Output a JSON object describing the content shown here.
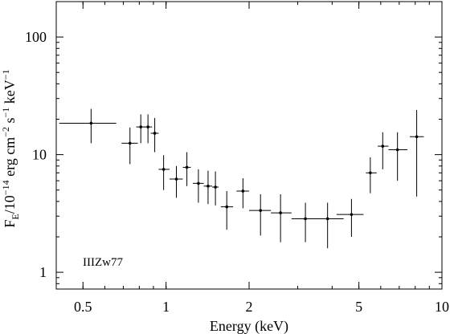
{
  "chart_data": {
    "type": "scatter",
    "title": "",
    "xlabel": "Energy (keV)",
    "ylabel": {
      "pre": "F",
      "sub": "E",
      "mid": "/10",
      "exp1": "−14",
      "unit1": " erg cm",
      "exp2": "−2",
      "unit2": " s",
      "exp3": "−1",
      "unit3": " keV",
      "exp4": "−1"
    },
    "xscale": "log",
    "yscale": "log",
    "xlim": [
      0.4,
      10
    ],
    "ylim": [
      0.72,
      200
    ],
    "xticks": [
      {
        "value": 0.5,
        "label": "0.5"
      },
      {
        "value": 1,
        "label": "1"
      },
      {
        "value": 2,
        "label": "2"
      },
      {
        "value": 5,
        "label": "5"
      },
      {
        "value": 10,
        "label": "10"
      }
    ],
    "yticks": [
      {
        "value": 1,
        "label": "1"
      },
      {
        "value": 10,
        "label": "10"
      },
      {
        "value": 100,
        "label": "100"
      }
    ],
    "annotation": "IIIZw77",
    "series": [
      {
        "color": "#000000",
        "points": [
          {
            "x": 0.535,
            "xlo": 0.41,
            "xhi": 0.66,
            "y": 18.5,
            "ylo": 12.5,
            "yhi": 24.5
          },
          {
            "x": 0.74,
            "xlo": 0.69,
            "xhi": 0.79,
            "y": 12.5,
            "ylo": 8.3,
            "yhi": 17.0
          },
          {
            "x": 0.81,
            "xlo": 0.78,
            "xhi": 0.84,
            "y": 17.2,
            "ylo": 12.5,
            "yhi": 22.0
          },
          {
            "x": 0.86,
            "xlo": 0.83,
            "xhi": 0.89,
            "y": 17.2,
            "ylo": 12.5,
            "yhi": 22.0
          },
          {
            "x": 0.91,
            "xlo": 0.88,
            "xhi": 0.94,
            "y": 15.2,
            "ylo": 10.5,
            "yhi": 20.5
          },
          {
            "x": 0.98,
            "xlo": 0.94,
            "xhi": 1.03,
            "y": 7.5,
            "ylo": 5.0,
            "yhi": 9.9
          },
          {
            "x": 1.09,
            "xlo": 1.03,
            "xhi": 1.15,
            "y": 6.2,
            "ylo": 4.3,
            "yhi": 8.0
          },
          {
            "x": 1.19,
            "xlo": 1.15,
            "xhi": 1.23,
            "y": 7.8,
            "ylo": 5.4,
            "yhi": 10.5
          },
          {
            "x": 1.31,
            "xlo": 1.25,
            "xhi": 1.37,
            "y": 5.7,
            "ylo": 3.9,
            "yhi": 7.5
          },
          {
            "x": 1.42,
            "xlo": 1.37,
            "xhi": 1.47,
            "y": 5.4,
            "ylo": 3.8,
            "yhi": 7.3
          },
          {
            "x": 1.51,
            "xlo": 1.47,
            "xhi": 1.55,
            "y": 5.3,
            "ylo": 3.7,
            "yhi": 7.2
          },
          {
            "x": 1.66,
            "xlo": 1.58,
            "xhi": 1.75,
            "y": 3.6,
            "ylo": 2.3,
            "yhi": 4.9
          },
          {
            "x": 1.9,
            "xlo": 1.8,
            "xhi": 2.0,
            "y": 4.9,
            "ylo": 3.5,
            "yhi": 6.3
          },
          {
            "x": 2.2,
            "xlo": 2.0,
            "xhi": 2.4,
            "y": 3.35,
            "ylo": 2.05,
            "yhi": 4.6
          },
          {
            "x": 2.6,
            "xlo": 2.4,
            "xhi": 2.85,
            "y": 3.2,
            "ylo": 1.8,
            "yhi": 4.6
          },
          {
            "x": 3.2,
            "xlo": 2.85,
            "xhi": 3.6,
            "y": 2.85,
            "ylo": 1.8,
            "yhi": 3.9
          },
          {
            "x": 3.85,
            "xlo": 3.5,
            "xhi": 4.4,
            "y": 2.85,
            "ylo": 1.6,
            "yhi": 3.9
          },
          {
            "x": 4.7,
            "xlo": 4.15,
            "xhi": 5.2,
            "y": 3.1,
            "ylo": 2.0,
            "yhi": 4.2
          },
          {
            "x": 5.5,
            "xlo": 5.3,
            "xhi": 5.8,
            "y": 7.0,
            "ylo": 4.7,
            "yhi": 9.5
          },
          {
            "x": 6.1,
            "xlo": 5.85,
            "xhi": 6.4,
            "y": 11.8,
            "ylo": 7.5,
            "yhi": 15.5
          },
          {
            "x": 6.9,
            "xlo": 6.4,
            "xhi": 7.5,
            "y": 11.0,
            "ylo": 6.0,
            "yhi": 15.5
          },
          {
            "x": 8.1,
            "xlo": 7.65,
            "xhi": 8.6,
            "y": 14.2,
            "ylo": 4.4,
            "yhi": 24.0
          }
        ]
      }
    ]
  }
}
